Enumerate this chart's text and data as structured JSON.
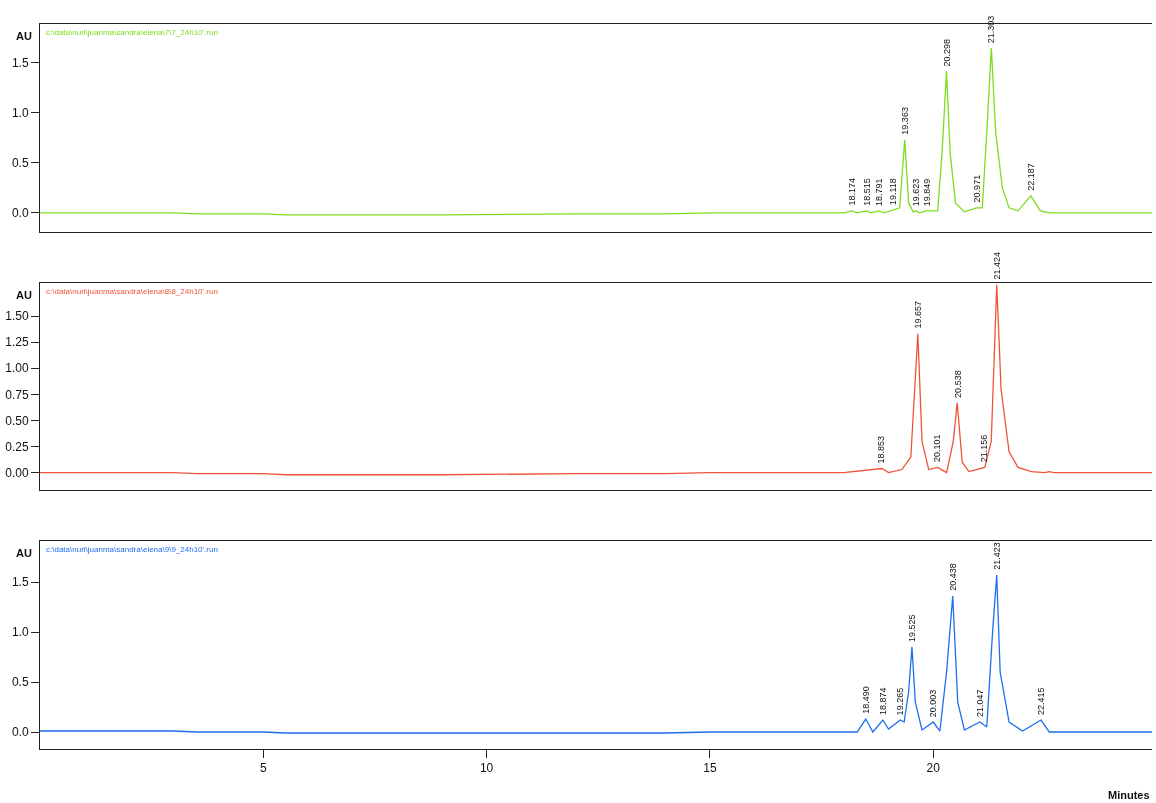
{
  "chart_data": [
    {
      "type": "line",
      "ylabel": "AU",
      "tick_labels": "y",
      "marker": "none",
      "line_style": "solid",
      "xlim": [
        0,
        24.9
      ],
      "ylim": [
        -0.19,
        1.89
      ],
      "yticks": [
        {
          "value": 0.0,
          "label": "0.0"
        },
        0.5,
        {
          "value": 1.0,
          "label": "1.0"
        },
        1.5
      ],
      "series": [
        {
          "color": "#7ddc1f",
          "x": [
            0,
            3.0,
            3.5,
            5.0,
            5.5,
            9.0,
            12.0,
            14.0,
            15.0,
            18.0,
            18.174,
            18.3,
            18.515,
            18.6,
            18.791,
            18.9,
            19.118,
            19.25,
            19.363,
            19.45,
            19.55,
            19.623,
            19.7,
            19.849,
            20.1,
            20.2,
            20.298,
            20.38,
            20.5,
            20.7,
            20.971,
            21.1,
            21.2,
            21.303,
            21.4,
            21.55,
            21.7,
            21.9,
            22.187,
            22.4,
            22.6,
            24.9
          ],
          "values": [
            0.0,
            0.0,
            -0.01,
            -0.01,
            -0.02,
            -0.02,
            -0.01,
            -0.01,
            0.0,
            0.0,
            0.02,
            0.0,
            0.02,
            0.0,
            0.02,
            0.0,
            0.03,
            0.05,
            0.73,
            0.1,
            0.01,
            0.02,
            0.0,
            0.02,
            0.02,
            0.6,
            1.42,
            0.6,
            0.1,
            0.01,
            0.05,
            0.05,
            0.8,
            1.65,
            0.8,
            0.25,
            0.05,
            0.02,
            0.17,
            0.02,
            0.0,
            0.0
          ]
        }
      ],
      "annotations": [
        "c:\\data\\nuri\\juanma\\sandra\\elena\\7\\7_24h10'.run",
        {
          "text": "18.174",
          "x": 18.174,
          "y": 0.02
        },
        {
          "text": "18.515",
          "x": 18.515,
          "y": 0.02
        },
        {
          "text": "18.791",
          "x": 18.791,
          "y": 0.02
        },
        {
          "text": "19.118",
          "x": 19.118,
          "y": 0.03
        },
        {
          "text": "19.363",
          "x": 19.363,
          "y": 0.73
        },
        {
          "text": "19.623",
          "x": 19.623,
          "y": 0.02
        },
        {
          "text": "19.849",
          "x": 19.849,
          "y": 0.02
        },
        {
          "text": "20.298",
          "x": 20.298,
          "y": 1.42
        },
        {
          "text": "20.971",
          "x": 20.971,
          "y": 0.05
        },
        {
          "text": "21.303",
          "x": 21.303,
          "y": 1.65
        },
        {
          "text": "22.187",
          "x": 22.187,
          "y": 0.17
        }
      ]
    },
    {
      "type": "line",
      "ylabel": "AU",
      "tick_labels": "y",
      "marker": "none",
      "line_style": "solid",
      "xlim": [
        0,
        24.9
      ],
      "ylim": [
        -0.17,
        1.82
      ],
      "yticks": [
        {
          "value": 0.0,
          "label": "0.00"
        },
        0.25,
        {
          "value": 0.5,
          "label": "0.50"
        },
        0.75,
        {
          "value": 1.0,
          "label": "1.00"
        },
        1.25,
        {
          "value": 1.5,
          "label": "1.50"
        }
      ],
      "series": [
        {
          "color": "#f0533a",
          "x": [
            0,
            3.0,
            3.5,
            5.0,
            5.5,
            9.0,
            12.0,
            14.0,
            15.0,
            18.0,
            18.853,
            19.0,
            19.3,
            19.5,
            19.657,
            19.75,
            19.9,
            20.101,
            20.3,
            20.45,
            20.538,
            20.65,
            20.8,
            21.156,
            21.3,
            21.424,
            21.52,
            21.7,
            21.9,
            22.2,
            22.5,
            22.6,
            22.7,
            24.9
          ],
          "values": [
            0.0,
            0.0,
            -0.01,
            -0.01,
            -0.02,
            -0.02,
            -0.01,
            -0.01,
            0.0,
            0.0,
            0.04,
            0.0,
            0.03,
            0.15,
            1.33,
            0.3,
            0.03,
            0.05,
            0.0,
            0.3,
            0.67,
            0.1,
            0.01,
            0.05,
            0.3,
            1.8,
            0.8,
            0.2,
            0.05,
            0.01,
            0.0,
            0.01,
            0.0,
            0.0
          ]
        }
      ],
      "annotations": [
        "c:\\data\\nuri\\juanma\\sandra\\elena\\8\\8_24h10'.run",
        {
          "text": "18.853",
          "x": 18.853,
          "y": 0.04
        },
        {
          "text": "19.657",
          "x": 19.657,
          "y": 1.33
        },
        {
          "text": "20.101",
          "x": 20.101,
          "y": 0.05
        },
        {
          "text": "20.538",
          "x": 20.538,
          "y": 0.67
        },
        {
          "text": "21.156",
          "x": 21.156,
          "y": 0.05
        },
        {
          "text": "21.424",
          "x": 21.424,
          "y": 1.8
        }
      ]
    },
    {
      "type": "line",
      "ylabel": "AU",
      "xlabel": "Minutes",
      "marker": "none",
      "line_style": "solid",
      "xlim": [
        0,
        24.9
      ],
      "xticks": [
        5,
        10,
        15,
        20
      ],
      "ylim": [
        -0.17,
        1.91
      ],
      "yticks": [
        {
          "value": 0.0,
          "label": "0.0"
        },
        0.5,
        {
          "value": 1.0,
          "label": "1.0"
        },
        1.5
      ],
      "series": [
        {
          "color": "#1e6ff0",
          "x": [
            0,
            3.0,
            3.5,
            5.0,
            5.5,
            9.0,
            12.0,
            14.0,
            15.0,
            18.3,
            18.49,
            18.65,
            18.874,
            19.0,
            19.265,
            19.35,
            19.45,
            19.525,
            19.6,
            19.75,
            20.003,
            20.15,
            20.3,
            20.438,
            20.55,
            20.7,
            21.047,
            21.2,
            21.33,
            21.423,
            21.5,
            21.7,
            22.0,
            22.415,
            22.6,
            24.9
          ],
          "values": [
            0.01,
            0.01,
            0.0,
            0.0,
            -0.01,
            -0.01,
            -0.01,
            -0.01,
            0.0,
            0.0,
            0.13,
            0.0,
            0.12,
            0.03,
            0.12,
            0.1,
            0.4,
            0.85,
            0.3,
            0.02,
            0.1,
            0.01,
            0.6,
            1.36,
            0.3,
            0.02,
            0.1,
            0.05,
            1.0,
            1.57,
            0.6,
            0.1,
            0.01,
            0.12,
            0.0,
            0.0
          ]
        }
      ],
      "annotations": [
        "c:\\data\\nuri\\juanma\\sandra\\elena\\9\\9_24h10'.run",
        {
          "text": "18.490",
          "x": 18.49,
          "y": 0.13
        },
        {
          "text": "18.874",
          "x": 18.874,
          "y": 0.12
        },
        {
          "text": "19.265",
          "x": 19.265,
          "y": 0.12
        },
        {
          "text": "19.525",
          "x": 19.525,
          "y": 0.85
        },
        {
          "text": "20.003",
          "x": 20.003,
          "y": 0.1
        },
        {
          "text": "20.438",
          "x": 20.438,
          "y": 1.36
        },
        {
          "text": "21.047",
          "x": 21.047,
          "y": 0.1
        },
        {
          "text": "21.423",
          "x": 21.423,
          "y": 1.57
        },
        {
          "text": "22.415",
          "x": 22.415,
          "y": 0.12
        }
      ]
    }
  ]
}
